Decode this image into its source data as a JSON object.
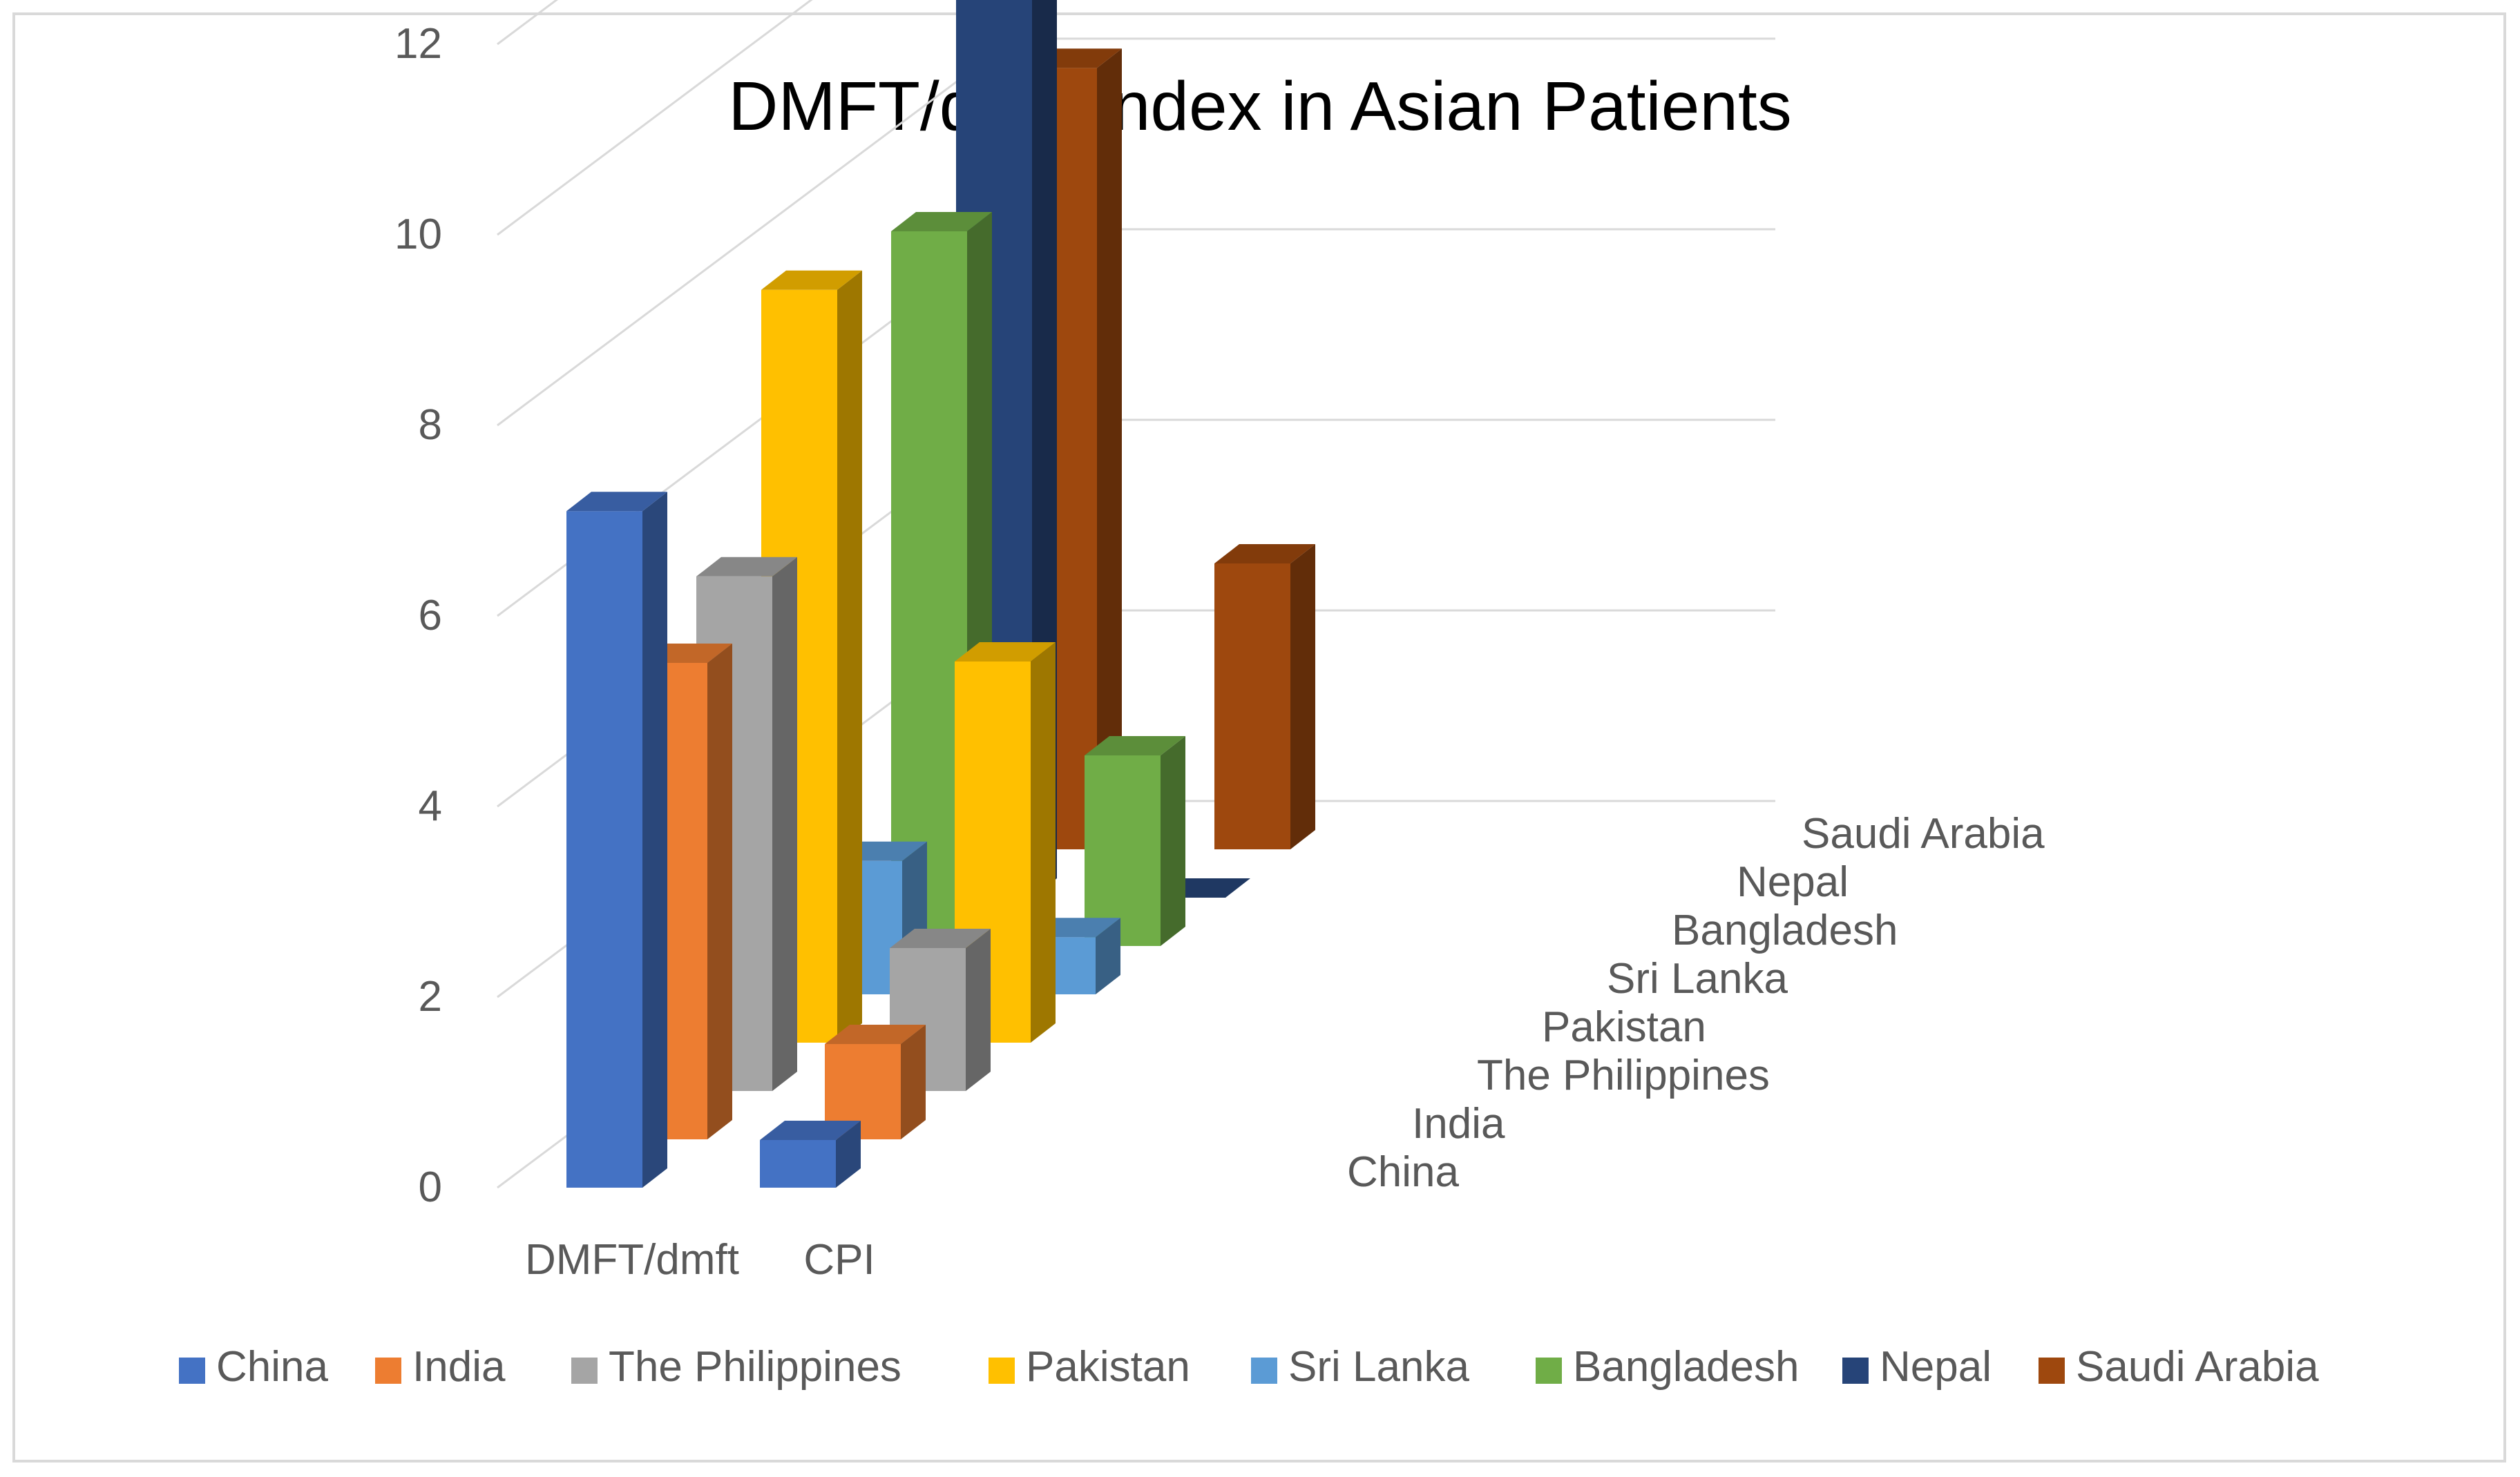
{
  "chart_data": {
    "type": "bar",
    "title": "DMFT/dmft Index in Asian Patients",
    "categories": [
      "DMFT/dmft",
      "CPI"
    ],
    "yticks": [
      "0",
      "2",
      "4",
      "6",
      "8",
      "10",
      "12"
    ],
    "ylim": [
      0,
      12
    ],
    "series": [
      {
        "name": "China",
        "values": [
          7.1,
          0.5
        ],
        "color": "#4472c4"
      },
      {
        "name": "India",
        "values": [
          5.0,
          1.0
        ],
        "color": "#ed7d31"
      },
      {
        "name": "The Philippines",
        "values": [
          5.4,
          1.5
        ],
        "color": "#a5a5a5"
      },
      {
        "name": "Pakistan",
        "values": [
          7.9,
          4.0
        ],
        "color": "#ffc000"
      },
      {
        "name": "Sri Lanka",
        "values": [
          1.4,
          0.6
        ],
        "color": "#5b9bd5"
      },
      {
        "name": "Bangladesh",
        "values": [
          7.5,
          2.0
        ],
        "color": "#70ad47"
      },
      {
        "name": "Nepal",
        "values": [
          11.6,
          0.0
        ],
        "color": "#264478"
      },
      {
        "name": "Saudi Arabia",
        "values": [
          8.2,
          3.0
        ],
        "color": "#9e480e"
      }
    ],
    "grid": true,
    "legend": "bottom"
  }
}
